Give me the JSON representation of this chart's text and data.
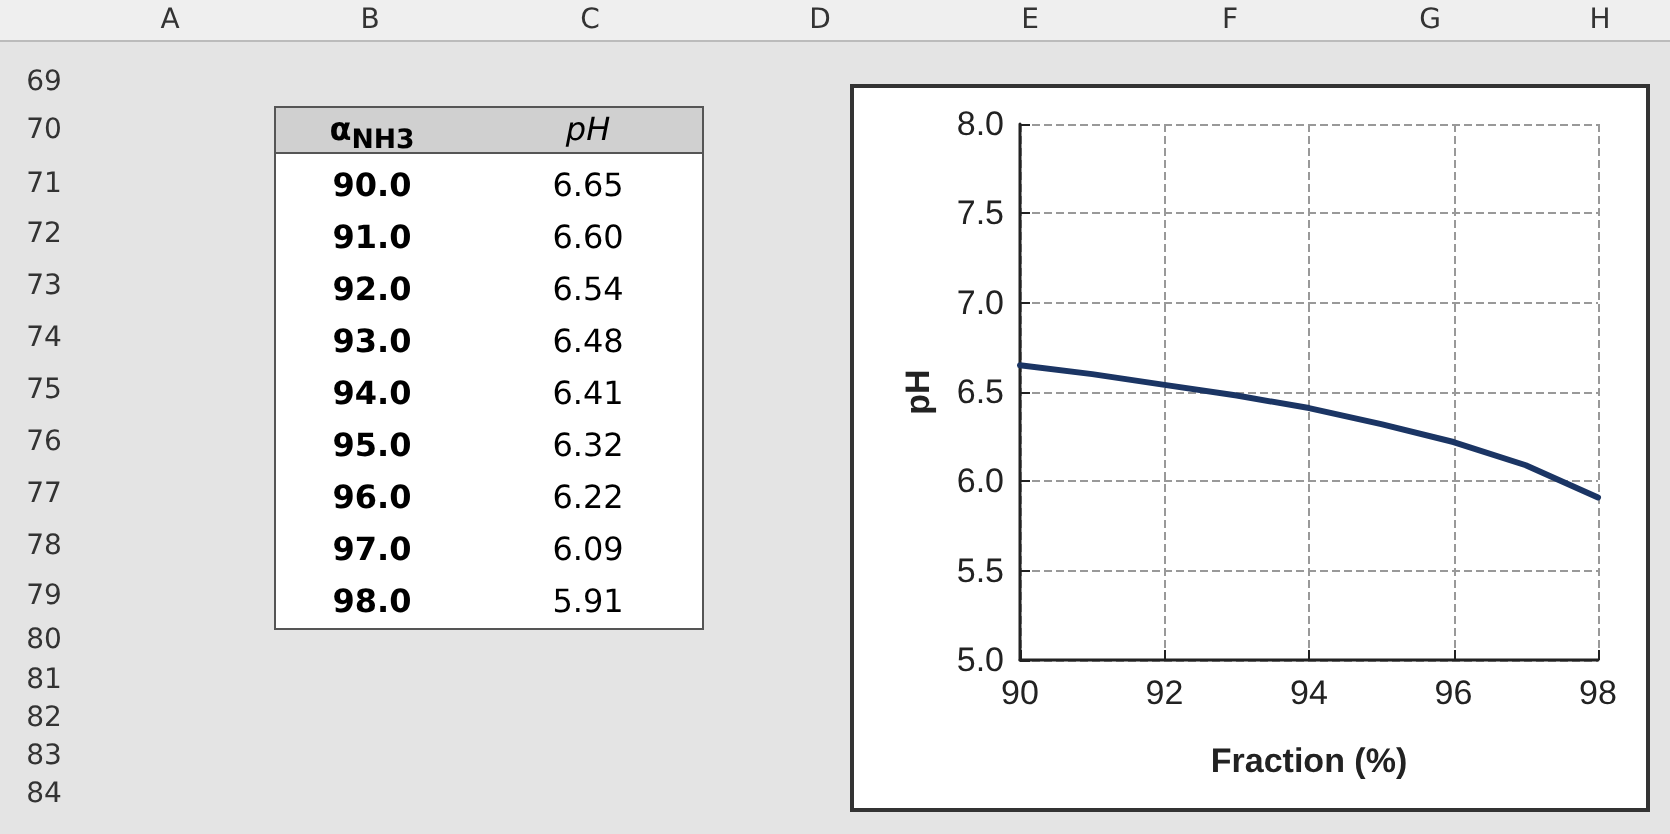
{
  "chart_data": {
    "type": "line",
    "xlabel": "Fraction (%)",
    "ylabel": "pH",
    "x": [
      90,
      91,
      92,
      93,
      94,
      95,
      96,
      97,
      98
    ],
    "series": [
      {
        "color": "#1b3564",
        "values": [
          6.65,
          6.6,
          6.54,
          6.48,
          6.41,
          6.32,
          6.22,
          6.09,
          5.91
        ]
      }
    ],
    "xlim": [
      90,
      98
    ],
    "xticks": [
      90,
      92,
      94,
      96,
      98
    ],
    "ylim": [
      5,
      8
    ],
    "yticks": [
      {
        "value": 5,
        "label": "5.0"
      },
      {
        "value": 5.5,
        "label": "5.5"
      },
      {
        "value": 6,
        "label": "6.0"
      },
      {
        "value": 6.5,
        "label": "6.5"
      },
      {
        "value": 7,
        "label": "7.0"
      },
      {
        "value": 7.5,
        "label": "7.5"
      },
      {
        "value": 8,
        "label": "8.0"
      }
    ],
    "grid": true,
    "line_style": "solid",
    "annotations": [
      "A",
      "B",
      "C",
      "D",
      "E",
      "F",
      "G",
      "H",
      "69",
      "70",
      "71",
      "72",
      "73",
      "74",
      "75",
      "76",
      "77",
      "78",
      "79",
      "80",
      "81",
      "82",
      "83",
      "84",
      "α$_{NH3}$",
      "pH",
      "90.0",
      "6.65",
      "91.0",
      "6.60",
      "92.0",
      "6.54",
      "93.0",
      "6.48",
      "94.0",
      "6.41",
      "95.0",
      "6.32",
      "96.0",
      "6.22",
      "97.0",
      "6.09",
      "98.0",
      "5.91"
    ]
  }
}
